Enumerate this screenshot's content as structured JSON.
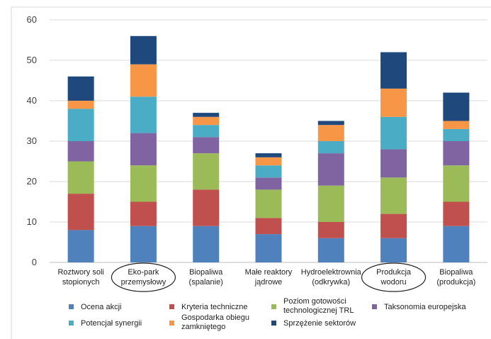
{
  "chart_data": {
    "type": "bar",
    "stacked": true,
    "ylim": [
      0,
      60
    ],
    "yticks": [
      0,
      10,
      20,
      30,
      40,
      50,
      60
    ],
    "grid": "horizontal",
    "legend_position": "bottom",
    "categories": [
      [
        "Roztwory soli",
        "stopionych"
      ],
      [
        "Eko-park",
        "przemysłowy"
      ],
      [
        "Biopaliwa",
        "(spalanie)"
      ],
      [
        "Małe reaktory",
        "jądrowe"
      ],
      [
        "Hydroelektrownia",
        "(odkrywka)"
      ],
      [
        "Produkcja",
        "wodoru"
      ],
      [
        "Biopaliwa",
        "(produkcja)"
      ]
    ],
    "circled_categories": [
      1,
      5
    ],
    "series": [
      {
        "name": "Ocena akcji",
        "color": "#4f81bd",
        "values": [
          8,
          9,
          9,
          7,
          6,
          6,
          9
        ]
      },
      {
        "name": "Kryteria techniczne",
        "color": "#c0504d",
        "values": [
          9,
          6,
          9,
          4,
          4,
          6,
          6
        ]
      },
      {
        "name": "Poziom gotowości technologicznej TRL",
        "color": "#9bbb59",
        "values": [
          8,
          9,
          9,
          7,
          9,
          9,
          9
        ]
      },
      {
        "name": "Taksonomia europejska",
        "color": "#8064a2",
        "values": [
          5,
          8,
          4,
          3,
          8,
          7,
          6
        ]
      },
      {
        "name": "Potencjał synergii",
        "color": "#4bacc6",
        "values": [
          8,
          9,
          3,
          3,
          3,
          8,
          3
        ]
      },
      {
        "name": "Gospodarka obiegu zamkniętego",
        "color": "#f79646",
        "values": [
          2,
          8,
          2,
          2,
          4,
          7,
          2
        ]
      },
      {
        "name": "Sprzężenie sektorów",
        "color": "#1f497d",
        "values": [
          6,
          7,
          1,
          1,
          1,
          9,
          7
        ]
      }
    ],
    "legend_lines": [
      [
        "Ocena akcji"
      ],
      [
        "Kryteria techniczne"
      ],
      [
        "Poziom gotowości",
        "technologicznej TRL"
      ],
      [
        "Taksonomia europejska"
      ],
      [
        "Potencjał synergii"
      ],
      [
        "Gospodarka obiegu",
        "zamkniętego"
      ],
      [
        "Sprzężenie sektorów"
      ]
    ]
  }
}
